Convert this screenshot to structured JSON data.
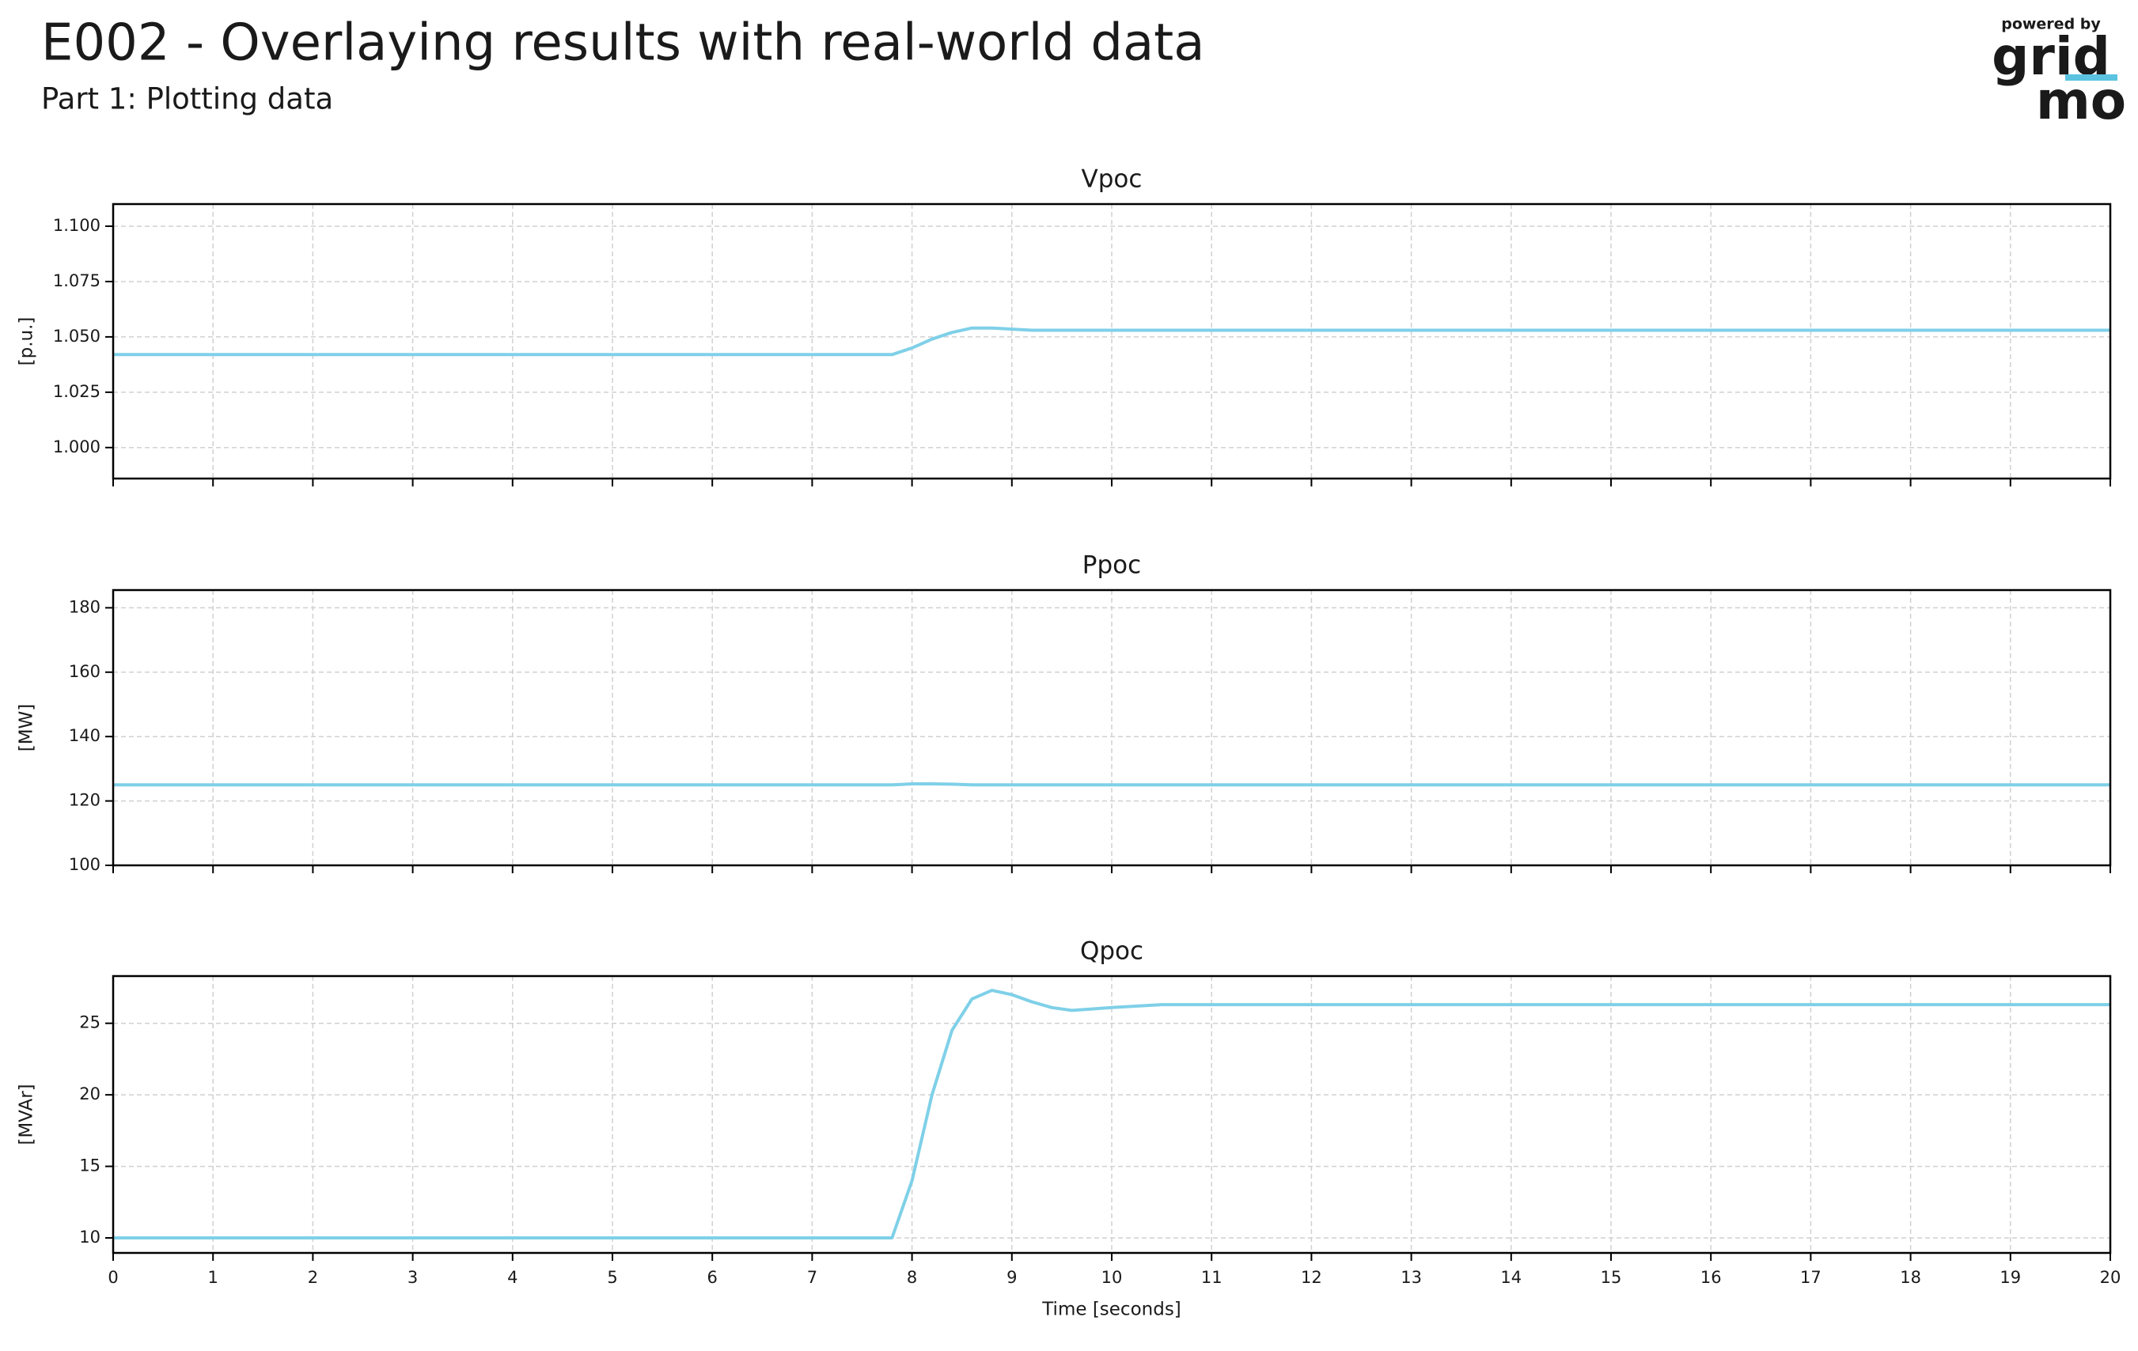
{
  "header": {
    "title": "E002 - Overlaying results with real-world data",
    "subtitle": "Part 1: Plotting data"
  },
  "logo": {
    "tagline": "powered by",
    "line1": "grid",
    "line2": "mo"
  },
  "chart_data": [
    {
      "type": "line",
      "title": "Vpoc",
      "ylabel": "[p.u.]",
      "x": [
        0,
        1,
        2,
        3,
        4,
        5,
        6,
        7,
        7.8,
        8,
        8.2,
        8.4,
        8.6,
        8.8,
        9,
        9.2,
        9.4,
        9.6,
        9.8,
        10,
        10.5,
        11,
        12,
        13,
        14,
        15,
        16,
        17,
        18,
        19,
        20
      ],
      "values": [
        1.042,
        1.042,
        1.042,
        1.042,
        1.042,
        1.042,
        1.042,
        1.042,
        1.042,
        1.045,
        1.049,
        1.052,
        1.054,
        1.054,
        1.0535,
        1.053,
        1.053,
        1.053,
        1.053,
        1.053,
        1.053,
        1.053,
        1.053,
        1.053,
        1.053,
        1.053,
        1.053,
        1.053,
        1.053,
        1.053,
        1.053
      ],
      "color": "#7fd0e8",
      "xlim": [
        0,
        20
      ],
      "xticks": [
        0,
        1,
        2,
        3,
        4,
        5,
        6,
        7,
        8,
        9,
        10,
        11,
        12,
        13,
        14,
        15,
        16,
        17,
        18,
        19,
        20
      ],
      "ylim": [
        0.986,
        1.11
      ],
      "yticks": [
        {
          "value": 1.0,
          "label": "1.000"
        },
        {
          "value": 1.025,
          "label": "1.025"
        },
        {
          "value": 1.05,
          "label": "1.050"
        },
        {
          "value": 1.075,
          "label": "1.075"
        },
        {
          "value": 1.1,
          "label": "1.100"
        }
      ],
      "grid": true
    },
    {
      "type": "line",
      "title": "Ppoc",
      "ylabel": "[MW]",
      "x": [
        0,
        1,
        2,
        3,
        4,
        5,
        6,
        7,
        7.8,
        8,
        8.2,
        8.4,
        8.6,
        8.8,
        9,
        9.2,
        9.4,
        9.6,
        9.8,
        10,
        10.5,
        11,
        12,
        13,
        14,
        15,
        16,
        17,
        18,
        19,
        20
      ],
      "values": [
        125,
        125,
        125,
        125,
        125,
        125,
        125,
        125,
        125,
        125.3,
        125.3,
        125.2,
        125,
        125,
        125,
        125,
        125,
        125,
        125,
        125,
        125,
        125,
        125,
        125,
        125,
        125,
        125,
        125,
        125,
        125,
        125
      ],
      "color": "#7fd0e8",
      "xlim": [
        0,
        20
      ],
      "xticks": [
        0,
        1,
        2,
        3,
        4,
        5,
        6,
        7,
        8,
        9,
        10,
        11,
        12,
        13,
        14,
        15,
        16,
        17,
        18,
        19,
        20
      ],
      "ylim": [
        100,
        185.5
      ],
      "yticks": [
        100,
        120,
        140,
        160,
        180
      ],
      "grid": true
    },
    {
      "type": "line",
      "title": "Qpoc",
      "ylabel": "[MVAr]",
      "xlabel": "Time [seconds]",
      "x": [
        0,
        1,
        2,
        3,
        4,
        5,
        6,
        7,
        7.8,
        8,
        8.2,
        8.4,
        8.6,
        8.8,
        9,
        9.2,
        9.4,
        9.6,
        9.8,
        10,
        10.5,
        11,
        12,
        13,
        14,
        15,
        16,
        17,
        18,
        19,
        20
      ],
      "values": [
        10,
        10,
        10,
        10,
        10,
        10,
        10,
        10,
        10,
        14,
        20,
        24.5,
        26.7,
        27.3,
        27,
        26.5,
        26.1,
        25.9,
        26,
        26.1,
        26.3,
        26.3,
        26.3,
        26.3,
        26.3,
        26.3,
        26.3,
        26.3,
        26.3,
        26.3,
        26.3
      ],
      "color": "#7fd0e8",
      "xlim": [
        0,
        20
      ],
      "xticks": [
        0,
        1,
        2,
        3,
        4,
        5,
        6,
        7,
        8,
        9,
        10,
        11,
        12,
        13,
        14,
        15,
        16,
        17,
        18,
        19,
        20
      ],
      "ylim": [
        8.95,
        28.3
      ],
      "yticks": [
        10,
        15,
        20,
        25
      ],
      "grid": true
    }
  ]
}
